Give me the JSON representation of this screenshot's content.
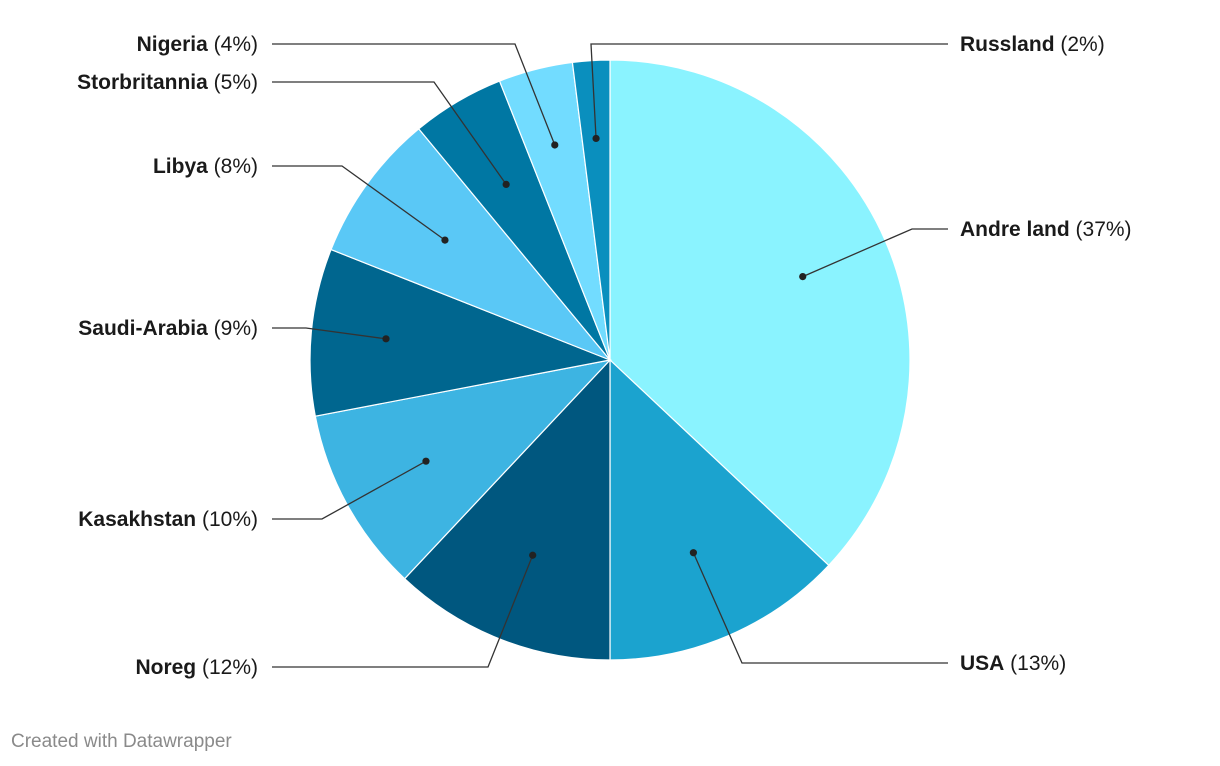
{
  "chart_data": {
    "type": "pie",
    "title": "",
    "slices": [
      {
        "label": "Andre land",
        "value": 37,
        "pct_label": "(37%)",
        "color": "#8af3ff"
      },
      {
        "label": "USA",
        "value": 13,
        "pct_label": "(13%)",
        "color": "#1ba3cf"
      },
      {
        "label": "Noreg",
        "value": 12,
        "pct_label": "(12%)",
        "color": "#00577f"
      },
      {
        "label": "Kasakhstan",
        "value": 10,
        "pct_label": "(10%)",
        "color": "#3db4e2"
      },
      {
        "label": "Saudi-Arabia",
        "value": 9,
        "pct_label": "(9%)",
        "color": "#00668f"
      },
      {
        "label": "Libya",
        "value": 8,
        "pct_label": "(8%)",
        "color": "#5ac8f6"
      },
      {
        "label": "Storbritannia",
        "value": 5,
        "pct_label": "(5%)",
        "color": "#0077a3"
      },
      {
        "label": "Nigeria",
        "value": 4,
        "pct_label": "(4%)",
        "color": "#72dcff"
      },
      {
        "label": "Russland",
        "value": 2,
        "pct_label": "(2%)",
        "color": "#0a8fbe"
      }
    ],
    "start": "12 o'clock",
    "direction": "clockwise",
    "legend": "none",
    "labels": "outside with leader lines"
  },
  "footer": {
    "credit": "Created with Datawrapper"
  }
}
